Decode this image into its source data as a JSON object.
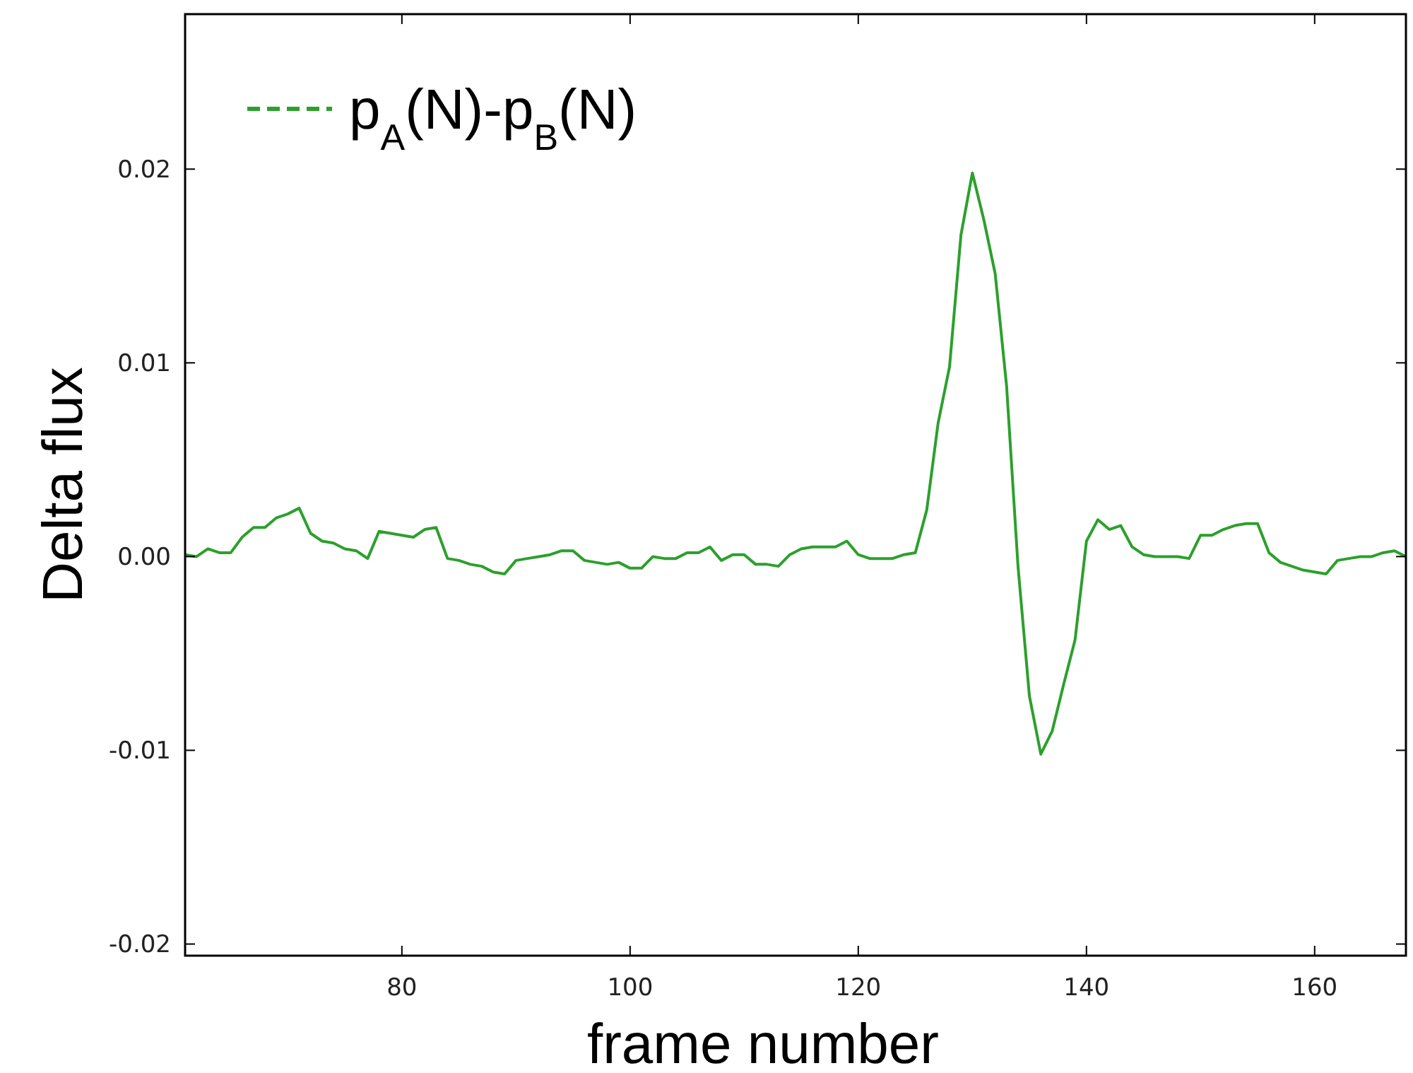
{
  "chart_data": {
    "type": "line",
    "xlabel": "frame number",
    "ylabel": "Delta flux",
    "xlim": [
      61,
      168
    ],
    "ylim": [
      -0.0206,
      0.028
    ],
    "xticks": [
      80,
      100,
      120,
      140,
      160
    ],
    "yticks": [
      -0.02,
      -0.01,
      {
        "value": 0,
        "label": "0.00"
      },
      0.01,
      0.02
    ],
    "legend": "top left",
    "grid": false,
    "marker": "none",
    "line_style": "solid",
    "series": [
      {
        "name": "p$_{A}$(N)-p$_{B}$(N)",
        "color": "#2ca02c",
        "x": [
          61,
          62,
          63,
          64,
          65,
          66,
          67,
          68,
          69,
          70,
          71,
          72,
          73,
          74,
          75,
          76,
          77,
          78,
          79,
          80,
          81,
          82,
          83,
          84,
          85,
          86,
          87,
          88,
          89,
          90,
          91,
          92,
          93,
          94,
          95,
          96,
          97,
          98,
          99,
          100,
          101,
          102,
          103,
          104,
          105,
          106,
          107,
          108,
          109,
          110,
          111,
          112,
          113,
          114,
          115,
          116,
          117,
          118,
          119,
          120,
          121,
          122,
          123,
          124,
          125,
          126,
          127,
          128,
          129,
          130,
          131,
          132,
          133,
          134,
          135,
          136,
          137,
          138,
          139,
          140,
          141,
          142,
          143,
          144,
          145,
          146,
          147,
          148,
          149,
          150,
          151,
          152,
          153,
          154,
          155,
          156,
          157,
          158,
          159,
          160,
          161,
          162,
          163,
          164,
          165,
          166,
          167,
          168
        ],
        "values": [
          0.0001,
          0.0,
          0.0004,
          0.0002,
          0.0002,
          0.001,
          0.0015,
          0.0015,
          0.002,
          0.0022,
          0.0025,
          0.0012,
          0.0008,
          0.0007,
          0.0004,
          0.0003,
          -0.0001,
          0.0013,
          0.0012,
          0.0011,
          0.001,
          0.0014,
          0.0015,
          -0.0001,
          -0.0002,
          -0.0004,
          -0.0005,
          -0.0008,
          -0.0009,
          -0.0002,
          -0.0001,
          0.0,
          0.0001,
          0.0003,
          0.0003,
          -0.0002,
          -0.0003,
          -0.0004,
          -0.0003,
          -0.0006,
          -0.0006,
          0.0,
          -0.0001,
          -0.0001,
          0.0002,
          0.0002,
          0.0005,
          -0.0002,
          0.0001,
          0.0001,
          -0.0004,
          -0.0004,
          -0.0005,
          0.0001,
          0.0004,
          0.0005,
          0.0005,
          0.0005,
          0.0008,
          0.0001,
          -0.0001,
          -0.0001,
          -0.0001,
          0.0001,
          0.0002,
          0.0024,
          0.0069,
          0.0098,
          0.0166,
          0.0198,
          0.0174,
          0.0146,
          0.0088,
          -0.0005,
          -0.0072,
          -0.0102,
          -0.009,
          -0.0066,
          -0.0043,
          0.0008,
          0.0019,
          0.0014,
          0.0016,
          0.0005,
          0.0001,
          0.0,
          0.0,
          0.0,
          -0.0001,
          0.0011,
          0.0011,
          0.0014,
          0.0016,
          0.0017,
          0.0017,
          0.0002,
          -0.0003,
          -0.0005,
          -0.0007,
          -0.0008,
          -0.0009,
          -0.0002,
          -0.0001,
          0.0,
          0.0,
          0.0002,
          0.0003,
          0.0
        ]
      }
    ]
  }
}
